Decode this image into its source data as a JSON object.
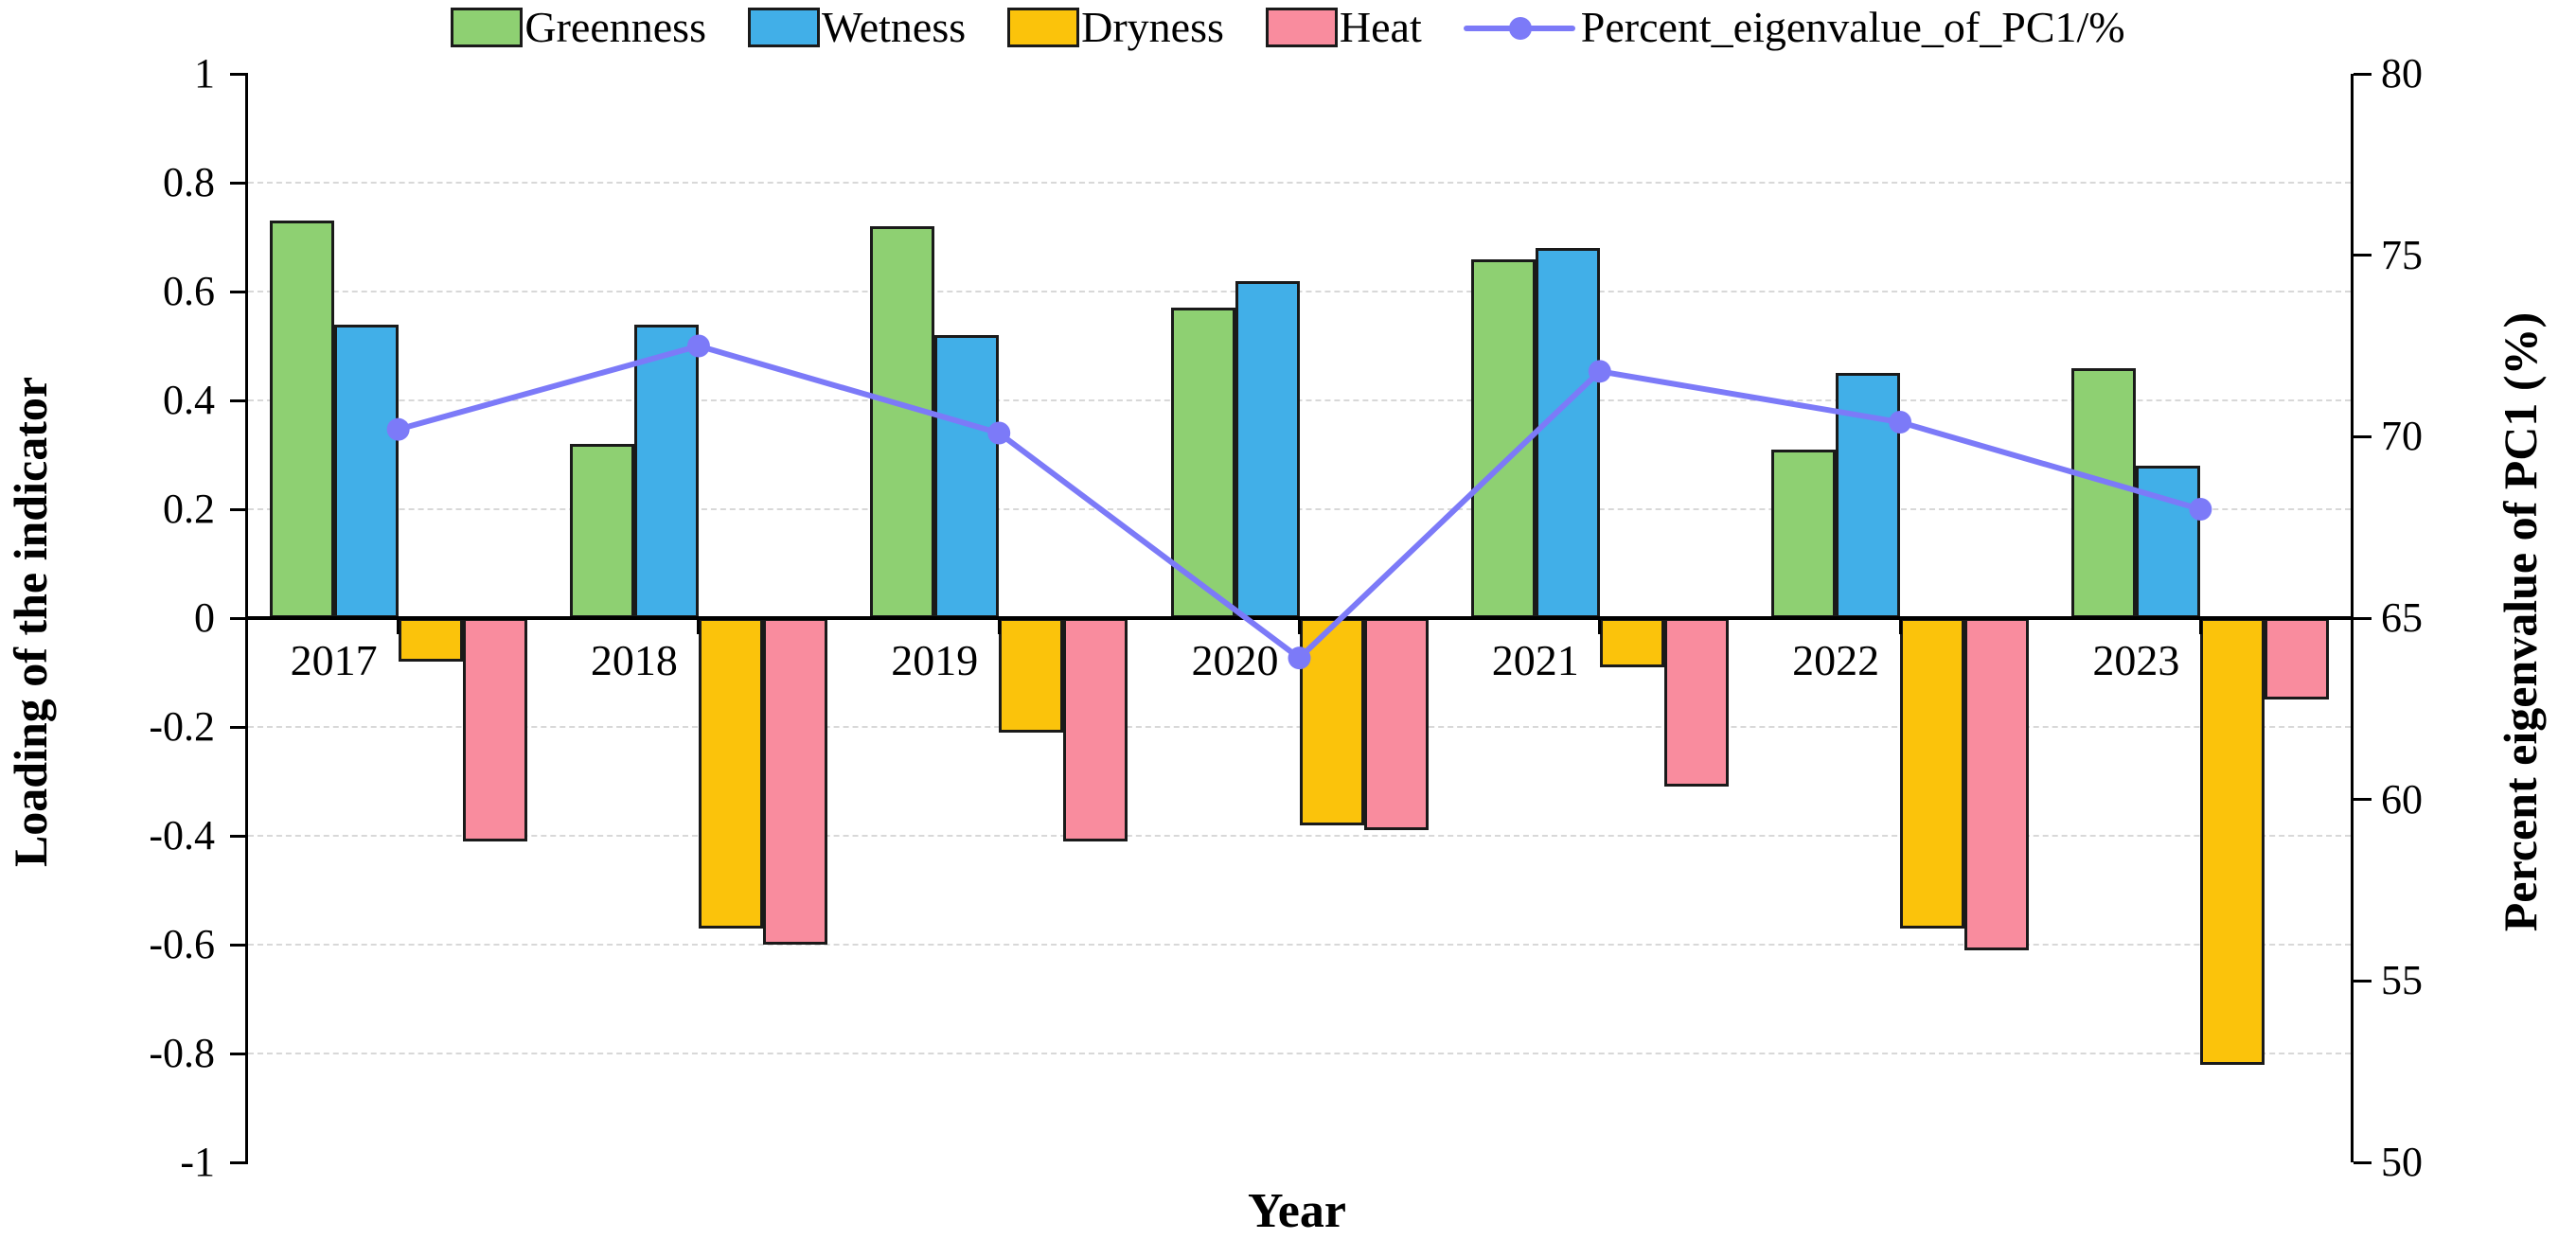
{
  "chart_data": {
    "type": "bar+line",
    "categories": [
      "2017",
      "2018",
      "2019",
      "2020",
      "2021",
      "2022",
      "2023"
    ],
    "series": [
      {
        "name": "Greenness",
        "color": "#8ED072",
        "values": [
          0.73,
          0.32,
          0.72,
          0.57,
          0.66,
          0.31,
          0.46
        ]
      },
      {
        "name": "Wetness",
        "color": "#41AFE8",
        "values": [
          0.54,
          0.54,
          0.52,
          0.62,
          0.68,
          0.45,
          0.28
        ]
      },
      {
        "name": "Dryness",
        "color": "#FBC30B",
        "values": [
          -0.08,
          -0.57,
          -0.21,
          -0.38,
          -0.09,
          -0.57,
          -0.82
        ]
      },
      {
        "name": "Heat",
        "color": "#F98C9E",
        "values": [
          -0.41,
          -0.6,
          -0.41,
          -0.39,
          -0.31,
          -0.61,
          -0.15
        ]
      }
    ],
    "line_series": {
      "name": "Percent_eigenvalue_of_PC1/%",
      "color": "#7C7AF8",
      "axis": "right",
      "values": [
        70.2,
        72.5,
        70.1,
        63.9,
        71.8,
        70.4,
        68.0
      ]
    },
    "xlabel": "Year",
    "left_axis": {
      "label": "Loading of the indicator",
      "min": -1,
      "max": 1,
      "tick_step": 0.2,
      "ticks": [
        "1",
        "0.8",
        "0.6",
        "0.4",
        "0.2",
        "0",
        "-0.2",
        "-0.4",
        "-0.6",
        "-0.8",
        "-1"
      ],
      "grid_values": [
        0.8,
        0.6,
        0.4,
        0.2,
        -0.2,
        -0.4,
        -0.6,
        -0.8
      ]
    },
    "right_axis": {
      "label": "Percent eigenvalue of PC1 (%)",
      "min": 50,
      "max": 80,
      "tick_step": 5,
      "ticks": [
        "80",
        "75",
        "70",
        "65",
        "60",
        "55",
        "50"
      ]
    },
    "grid": "horizontal-dashed",
    "legend_position": "top"
  },
  "colors": {
    "background": "#ffffff",
    "axis": "#000000",
    "grid": "#d8d8d8",
    "bar_border": "#1a1a1a"
  }
}
